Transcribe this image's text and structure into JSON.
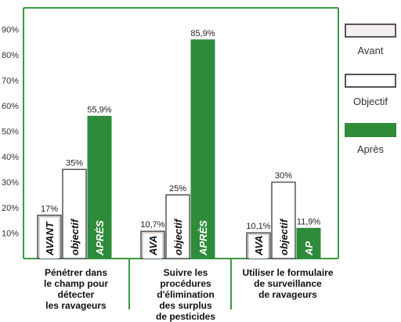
{
  "chart_data": {
    "type": "bar",
    "yticks": [
      "10%",
      "20%",
      "30%",
      "40%",
      "50%",
      "60%",
      "70%",
      "80%",
      "90%"
    ],
    "ylim": [
      0,
      100
    ],
    "grid": false,
    "legend_position": "right",
    "categories": [
      "Pénétrer dans\nle champ pour\ndétecter\nles ravageurs",
      "Suivre les\nprocédures\nd'élimination\ndes surplus\nde pesticides",
      "Utiliser le formulaire\nde surveillance\nde ravageurs"
    ],
    "series": [
      {
        "name": "Avant",
        "color": "#d8cfc9",
        "values": [
          17,
          10.7,
          10.1
        ],
        "value_labels": [
          "17%",
          "10,7%",
          "10,1%"
        ],
        "bar_labels": [
          "AVANT",
          "AVA",
          "AVA"
        ]
      },
      {
        "name": "Objectif",
        "color": "#ffffff",
        "values": [
          35,
          25,
          30
        ],
        "value_labels": [
          "35%",
          "25%",
          "30%"
        ],
        "bar_labels": [
          "objectif",
          "objectif",
          "objectif"
        ]
      },
      {
        "name": "Après",
        "color": "#2e8b3a",
        "values": [
          55.9,
          85.9,
          11.9
        ],
        "value_labels": [
          "55,9%",
          "85,9%",
          "11,9%"
        ],
        "bar_labels": [
          "APRÈS",
          "APRÈS",
          "AP"
        ]
      }
    ],
    "colors": {
      "frame": "#3c9a44",
      "bar_outline": "#555555"
    }
  }
}
